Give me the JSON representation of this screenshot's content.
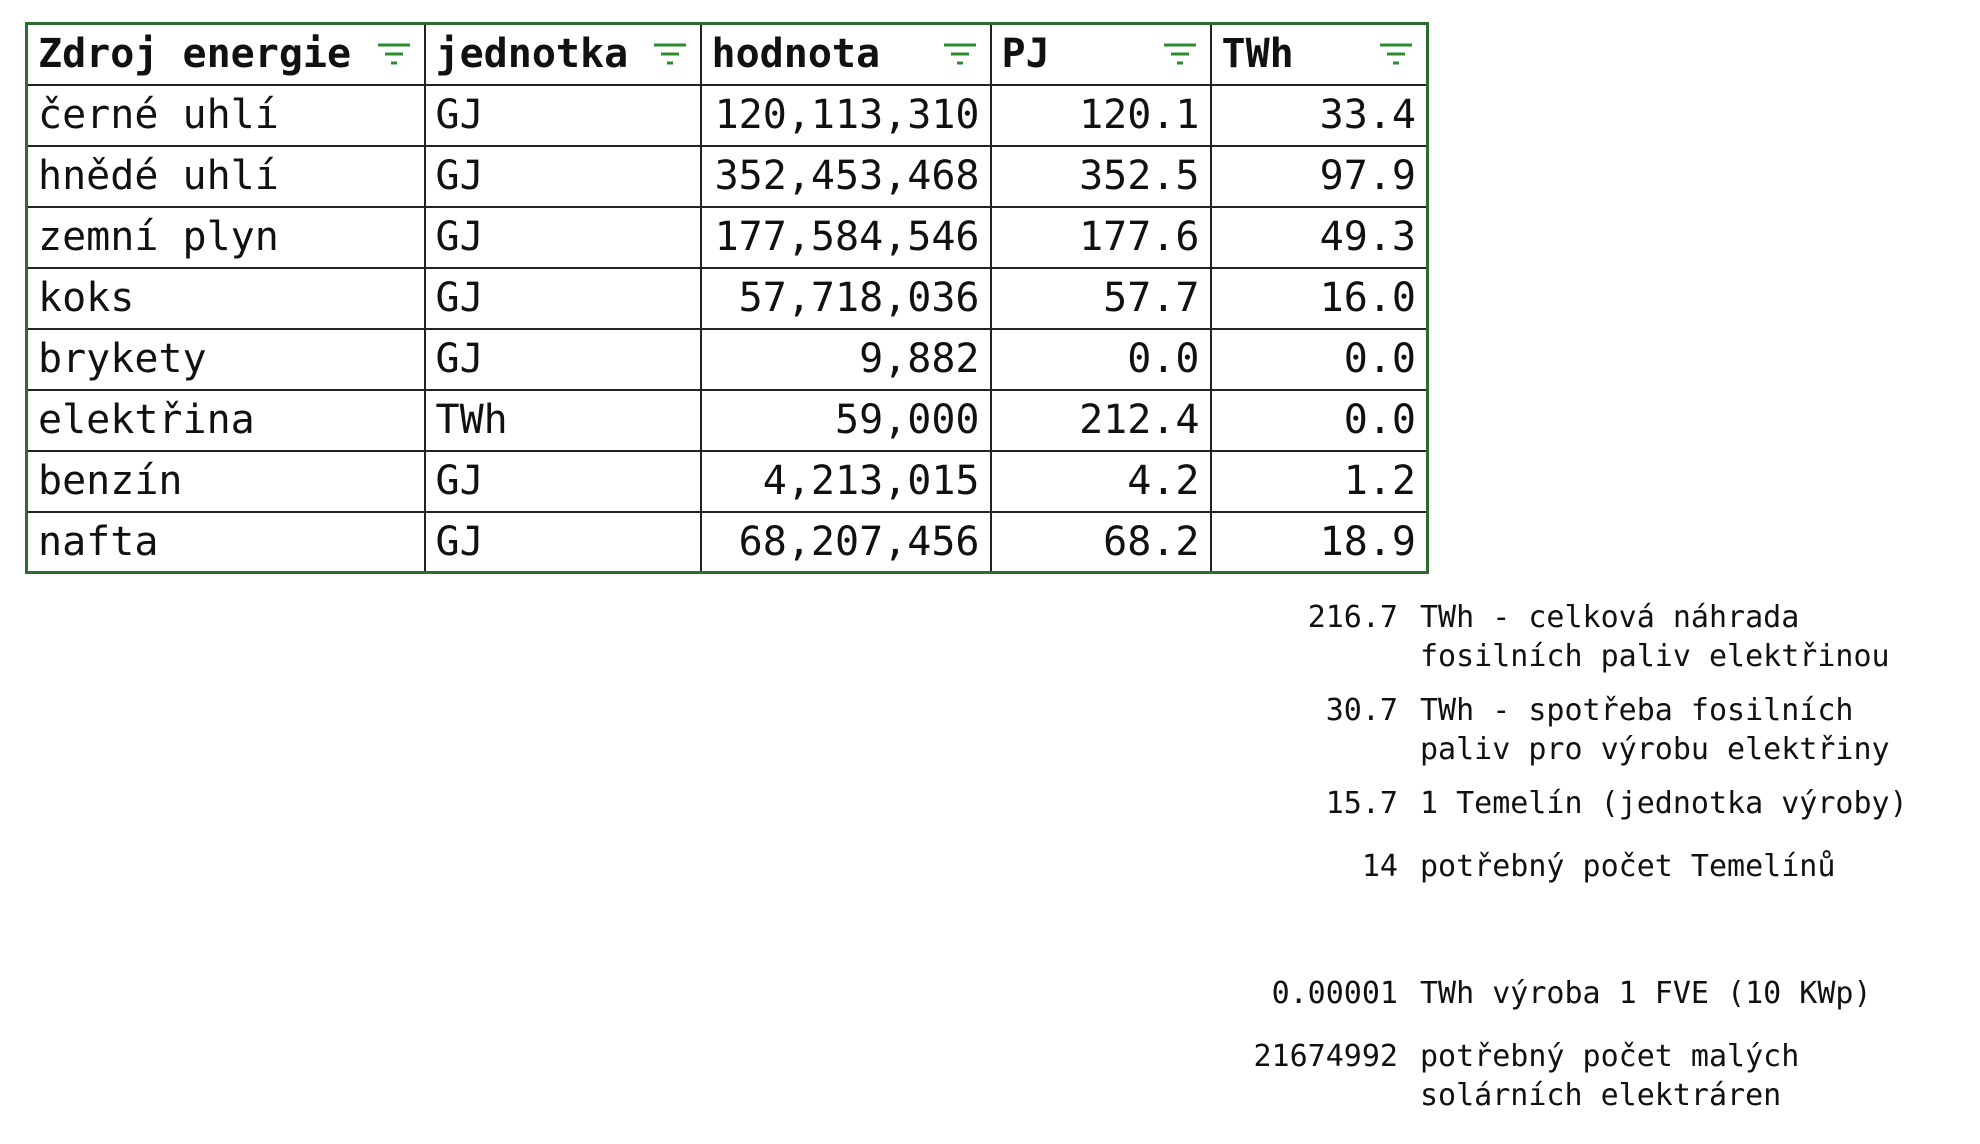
{
  "table": {
    "headers": [
      "Zdroj energie",
      "jednotka",
      "hodnota",
      "PJ",
      "TWh"
    ],
    "filter_icon_color": "#2e8b2e",
    "rows": [
      [
        "černé uhlí",
        "GJ",
        "120,113,310",
        "120.1",
        "33.4"
      ],
      [
        "hnědé uhlí",
        "GJ",
        "352,453,468",
        "352.5",
        "97.9"
      ],
      [
        "zemní plyn",
        "GJ",
        "177,584,546",
        "177.6",
        "49.3"
      ],
      [
        "koks",
        "GJ",
        "57,718,036",
        "57.7",
        "16.0"
      ],
      [
        "brykety",
        "GJ",
        "9,882",
        "0.0",
        "0.0"
      ],
      [
        "elektřina",
        "TWh",
        "59,000",
        "212.4",
        "0.0"
      ],
      [
        "benzín",
        "GJ",
        "4,213,015",
        "4.2",
        "1.2"
      ],
      [
        "nafta",
        "GJ",
        "68,207,456",
        "68.2",
        "18.9"
      ]
    ]
  },
  "notes": [
    {
      "value": "216.7",
      "text": "TWh - celková náhrada\nfosilních paliv elektřinou"
    },
    {
      "value": "30.7",
      "text": "TWh - spotřeba fosilních\npaliv pro výrobu elektřiny"
    },
    {
      "value": "15.7",
      "text": "1 Temelín (jednotka výroby)"
    },
    {
      "value": "14",
      "text": "potřebný počet Temelínů"
    },
    {
      "value": "0.00001",
      "text": "TWh výroba 1 FVE (10 KWp)"
    },
    {
      "value": "21674992",
      "text": "potřebný počet malých\nsolárních elektráren"
    }
  ]
}
